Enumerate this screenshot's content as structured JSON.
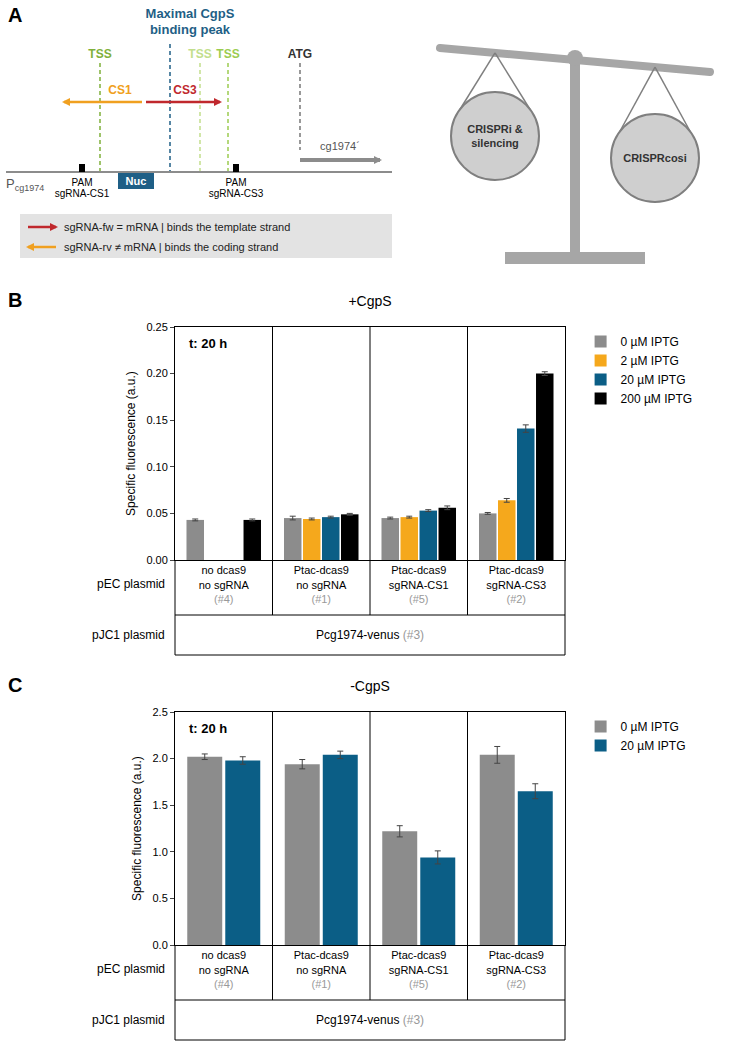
{
  "diagram": {
    "panel_label": "A",
    "binding_peak": "Maximal CgpS binding peak",
    "tss_labels": [
      "TSS",
      "TSS",
      "TSS"
    ],
    "start_codon": "ATG",
    "sgRNA_arrows": [
      "CS1",
      "CS3"
    ],
    "promoter": "Pcg1974",
    "gene": "cg1974´",
    "pam_labels": [
      [
        "PAM",
        "sgRNA-CS1"
      ],
      [
        "PAM",
        "sgRNA-CS3"
      ]
    ],
    "nucleoid": "Nuc",
    "key": [
      "sgRNA-fw = mRNA | binds the template strand",
      "sgRNA-rv ≠ mRNA | binds the coding strand"
    ],
    "balance": [
      "CRISPRi & silencing",
      "CRISPRcosi"
    ]
  },
  "chart_data": [
    {
      "type": "bar",
      "panel_label": "B",
      "title": "+CgpS",
      "annotations": [
        "t: 20 h"
      ],
      "y_label": "Specific fluorescence (a.u.)",
      "categories": [
        "no dcas9\nno sgRNA\n(#4)",
        "Ptac-dcas9\nno sgRNA\n(#1)",
        "Ptac-dcas9\nsgRNA-CS1\n(#5)",
        "Ptac-dcas9\nsgRNA-CS3\n(#2)"
      ],
      "series": [
        {
          "name": "0 µM IPTG",
          "color": "#8c8c8c",
          "values": [
            0.043,
            0.045,
            0.045,
            0.05
          ],
          "errors": [
            0.001,
            0.002,
            0.001,
            0.001
          ]
        },
        {
          "name": "2 µM IPTG",
          "color": "#f5a81c",
          "values": [
            null,
            0.044,
            0.046,
            0.064
          ],
          "errors": [
            null,
            0.001,
            0.001,
            0.002
          ]
        },
        {
          "name": "20 µM IPTG",
          "color": "#0b5e86",
          "values": [
            null,
            0.046,
            0.053,
            0.141
          ],
          "errors": [
            null,
            0.001,
            0.001,
            0.004
          ]
        },
        {
          "name": "200 µM IPTG",
          "color": "#000000",
          "values": [
            0.043,
            0.049,
            0.056,
            0.2
          ],
          "errors": [
            0.001,
            0.001,
            0.002,
            0.002
          ]
        }
      ],
      "ylim": [
        0,
        0.25
      ],
      "yticks": [
        {
          "value": 0,
          "label": "0.00"
        },
        {
          "value": 0.05,
          "label": "0.05"
        },
        {
          "value": 0.1,
          "label": "0.10"
        },
        {
          "value": 0.15,
          "label": "0.15"
        },
        {
          "value": 0.2,
          "label": "0.20"
        },
        {
          "value": 0.25,
          "label": "0.25"
        }
      ],
      "legend": "right",
      "row_labels": [
        "pEC plasmid",
        "pJC1 plasmid"
      ],
      "spanning_label": "Pcg1974-venus (#3)"
    },
    {
      "type": "bar",
      "panel_label": "C",
      "title": "-CgpS",
      "annotations": [
        "t: 20 h"
      ],
      "y_label": "Specific fluorescence (a.u.)",
      "categories": [
        "no dcas9\nno sgRNA\n(#4)",
        "Ptac-dcas9\nno sgRNA\n(#1)",
        "Ptac-dcas9\nsgRNA-CS1\n(#5)",
        "Ptac-dcas9\nsgRNA-CS3\n(#2)"
      ],
      "series": [
        {
          "name": "0 µM IPTG",
          "color": "#8c8c8c",
          "values": [
            2.02,
            1.94,
            1.22,
            2.04
          ],
          "errors": [
            0.03,
            0.05,
            0.06,
            0.09
          ]
        },
        {
          "name": "20 µM IPTG",
          "color": "#0b5e86",
          "values": [
            1.98,
            2.04,
            0.94,
            1.65
          ],
          "errors": [
            0.04,
            0.04,
            0.07,
            0.08
          ]
        }
      ],
      "ylim": [
        0,
        2.5
      ],
      "yticks": [
        {
          "value": 0,
          "label": "0.0"
        },
        {
          "value": 0.5,
          "label": "0.5"
        },
        {
          "value": 1,
          "label": "1.0"
        },
        {
          "value": 1.5,
          "label": "1.5"
        },
        {
          "value": 2,
          "label": "2.0"
        },
        {
          "value": 2.5,
          "label": "2.5"
        }
      ],
      "legend": "right",
      "row_labels": [
        "pEC plasmid",
        "pJC1 plasmid"
      ],
      "spanning_label": "Pcg1974-venus (#3)"
    }
  ]
}
